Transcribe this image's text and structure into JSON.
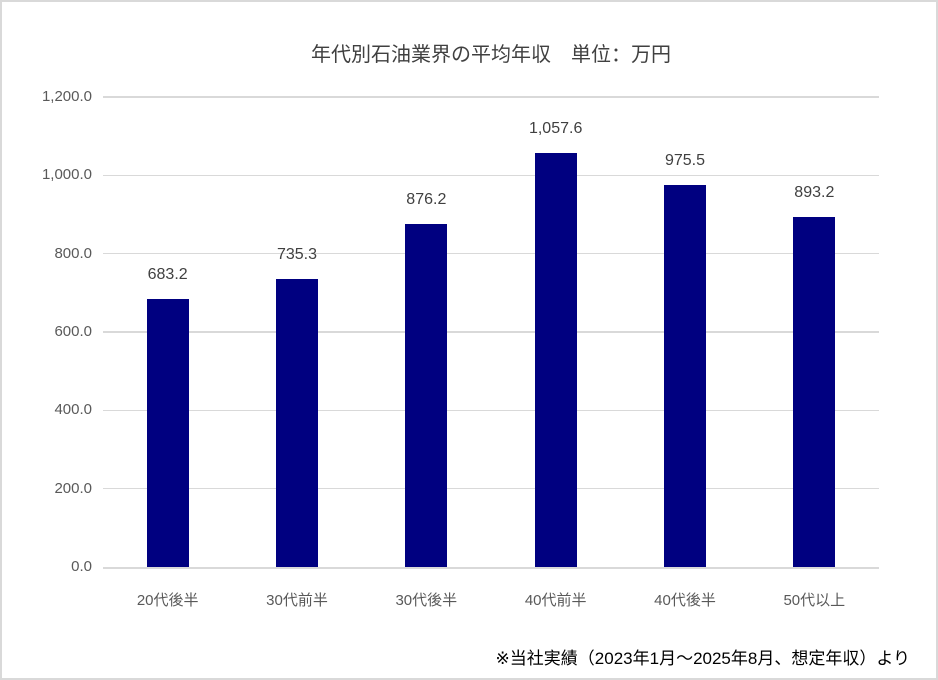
{
  "chart_data": {
    "type": "bar",
    "title": "年代別石油業界の平均年収　単位：万円",
    "categories": [
      "20代後半",
      "30代前半",
      "30代後半",
      "40代前半",
      "40代後半",
      "50代以上"
    ],
    "values": [
      683.2,
      735.3,
      876.2,
      1057.6,
      975.5,
      893.2
    ],
    "data_labels": [
      "683.2",
      "735.3",
      "876.2",
      "1,057.6",
      "975.5",
      "893.2"
    ],
    "y_ticks": [
      {
        "value": 0,
        "label": "0.0"
      },
      {
        "value": 200,
        "label": "200.0"
      },
      {
        "value": 400,
        "label": "400.0"
      },
      {
        "value": 600,
        "label": "600.0"
      },
      {
        "value": 800,
        "label": "800.0"
      },
      {
        "value": 1000,
        "label": "1,000.0"
      },
      {
        "value": 1200,
        "label": "1,200.0"
      }
    ],
    "ylim": [
      0,
      1200
    ],
    "xlabel": "",
    "ylabel": "",
    "grid": true,
    "legend_position": "none",
    "bar_color": "#000080"
  },
  "footer": {
    "source_note": "※当社実績（2023年1月～2025年8月、想定年収）より"
  },
  "colors": {
    "background": "#ffffff",
    "border": "#d9d9d9",
    "gridline": "#d9d9d9",
    "bar": "#000080",
    "axis_text": "#595959",
    "data_label_text": "#404040",
    "title_text": "#404040",
    "footer_text": "#000000"
  }
}
